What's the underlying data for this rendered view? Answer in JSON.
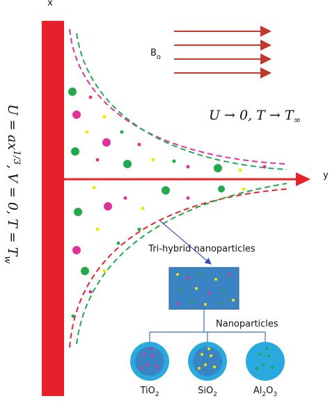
{
  "axes": {
    "x_label": "x",
    "y_label": "y"
  },
  "field": {
    "main": "B",
    "sub": "o"
  },
  "far_field": {
    "main": "U → 0, T → T",
    "sub": "∞"
  },
  "wall_condition": {
    "main": "U = ax",
    "sup": "1/3",
    "rest": ", V = 0, T = T",
    "sub": "w"
  },
  "legend": {
    "title": "Tri-hybrid nanoparticles",
    "branch": "Nanoparticles",
    "particles": [
      {
        "main": "TiO",
        "sub": "2"
      },
      {
        "main": "SiO",
        "sub": "2"
      },
      {
        "main": "Al",
        "sub": "2",
        "main2": "O",
        "sub2": "3"
      }
    ]
  }
}
